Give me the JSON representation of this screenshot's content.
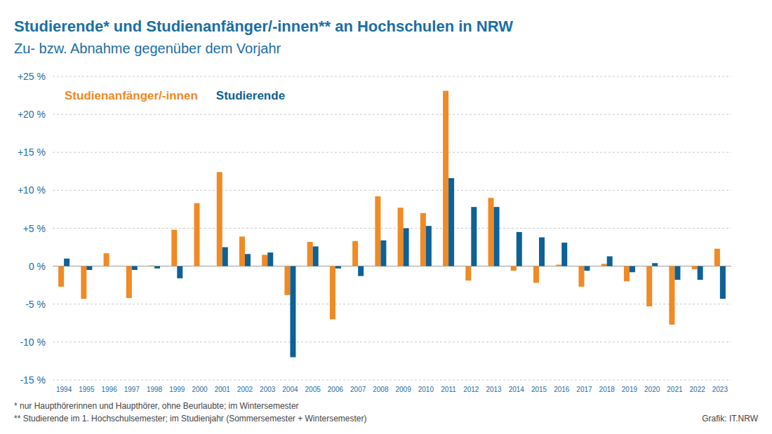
{
  "chart_data": {
    "type": "bar",
    "title": "Studierende* und Studienanfänger/-innen** an Hochschulen in NRW",
    "subtitle": "Zu- bzw. Abnahme gegenüber dem Vorjahr",
    "categories": [
      "1994",
      "1995",
      "1996",
      "1997",
      "1998",
      "1999",
      "2000",
      "2001",
      "2002",
      "2003",
      "2004",
      "2005",
      "2006",
      "2007",
      "2008",
      "2009",
      "2010",
      "2011",
      "2012",
      "2013",
      "2014",
      "2015",
      "2016",
      "2017",
      "2018",
      "2019",
      "2020",
      "2021",
      "2022",
      "2023"
    ],
    "series": [
      {
        "name": "Studienanfänger/-innen",
        "color": "#f08a24",
        "values": [
          -2.7,
          -4.3,
          1.7,
          -4.2,
          0.1,
          4.8,
          8.3,
          12.4,
          3.9,
          1.5,
          -3.8,
          3.2,
          -7.0,
          3.3,
          9.2,
          7.7,
          7.0,
          23.1,
          -1.9,
          9.0,
          -0.6,
          -2.2,
          0.2,
          -2.7,
          0.3,
          -2.0,
          -5.3,
          -7.7,
          -0.4,
          2.3
        ]
      },
      {
        "name": "Studierende",
        "color": "#0d6196",
        "values": [
          1.0,
          -0.5,
          0.0,
          -0.5,
          -0.3,
          -1.6,
          0.0,
          2.5,
          1.6,
          1.8,
          -12.0,
          2.6,
          -0.3,
          -1.3,
          3.4,
          5.0,
          5.3,
          11.6,
          7.8,
          7.8,
          4.5,
          3.8,
          3.1,
          -0.6,
          1.3,
          -0.8,
          0.4,
          -1.8,
          -1.8,
          -4.3
        ]
      }
    ],
    "ylim": [
      -15,
      25
    ],
    "yticks": [
      {
        "value": -15,
        "label": "-15 %"
      },
      {
        "value": -10,
        "label": "-10 %"
      },
      {
        "value": -5,
        "label": "-5 %"
      },
      {
        "value": 0,
        "label": "0 %"
      },
      {
        "value": 5,
        "label": "+5 %"
      },
      {
        "value": 10,
        "label": "+10 %"
      },
      {
        "value": 15,
        "label": "+15 %"
      },
      {
        "value": 20,
        "label": "+20 %"
      },
      {
        "value": 25,
        "label": "+25 %"
      }
    ],
    "grid": true,
    "legend": "top-left",
    "footnotes": [
      "* nur Haupthörerinnen und Haupthörer, ohne Beurlaubte; im Wintersemester",
      "** Studierende im 1. Hochschulsemester; im Studienjahr (Sommersemester + Wintersemester)"
    ],
    "source": "Grafik: IT.NRW"
  }
}
